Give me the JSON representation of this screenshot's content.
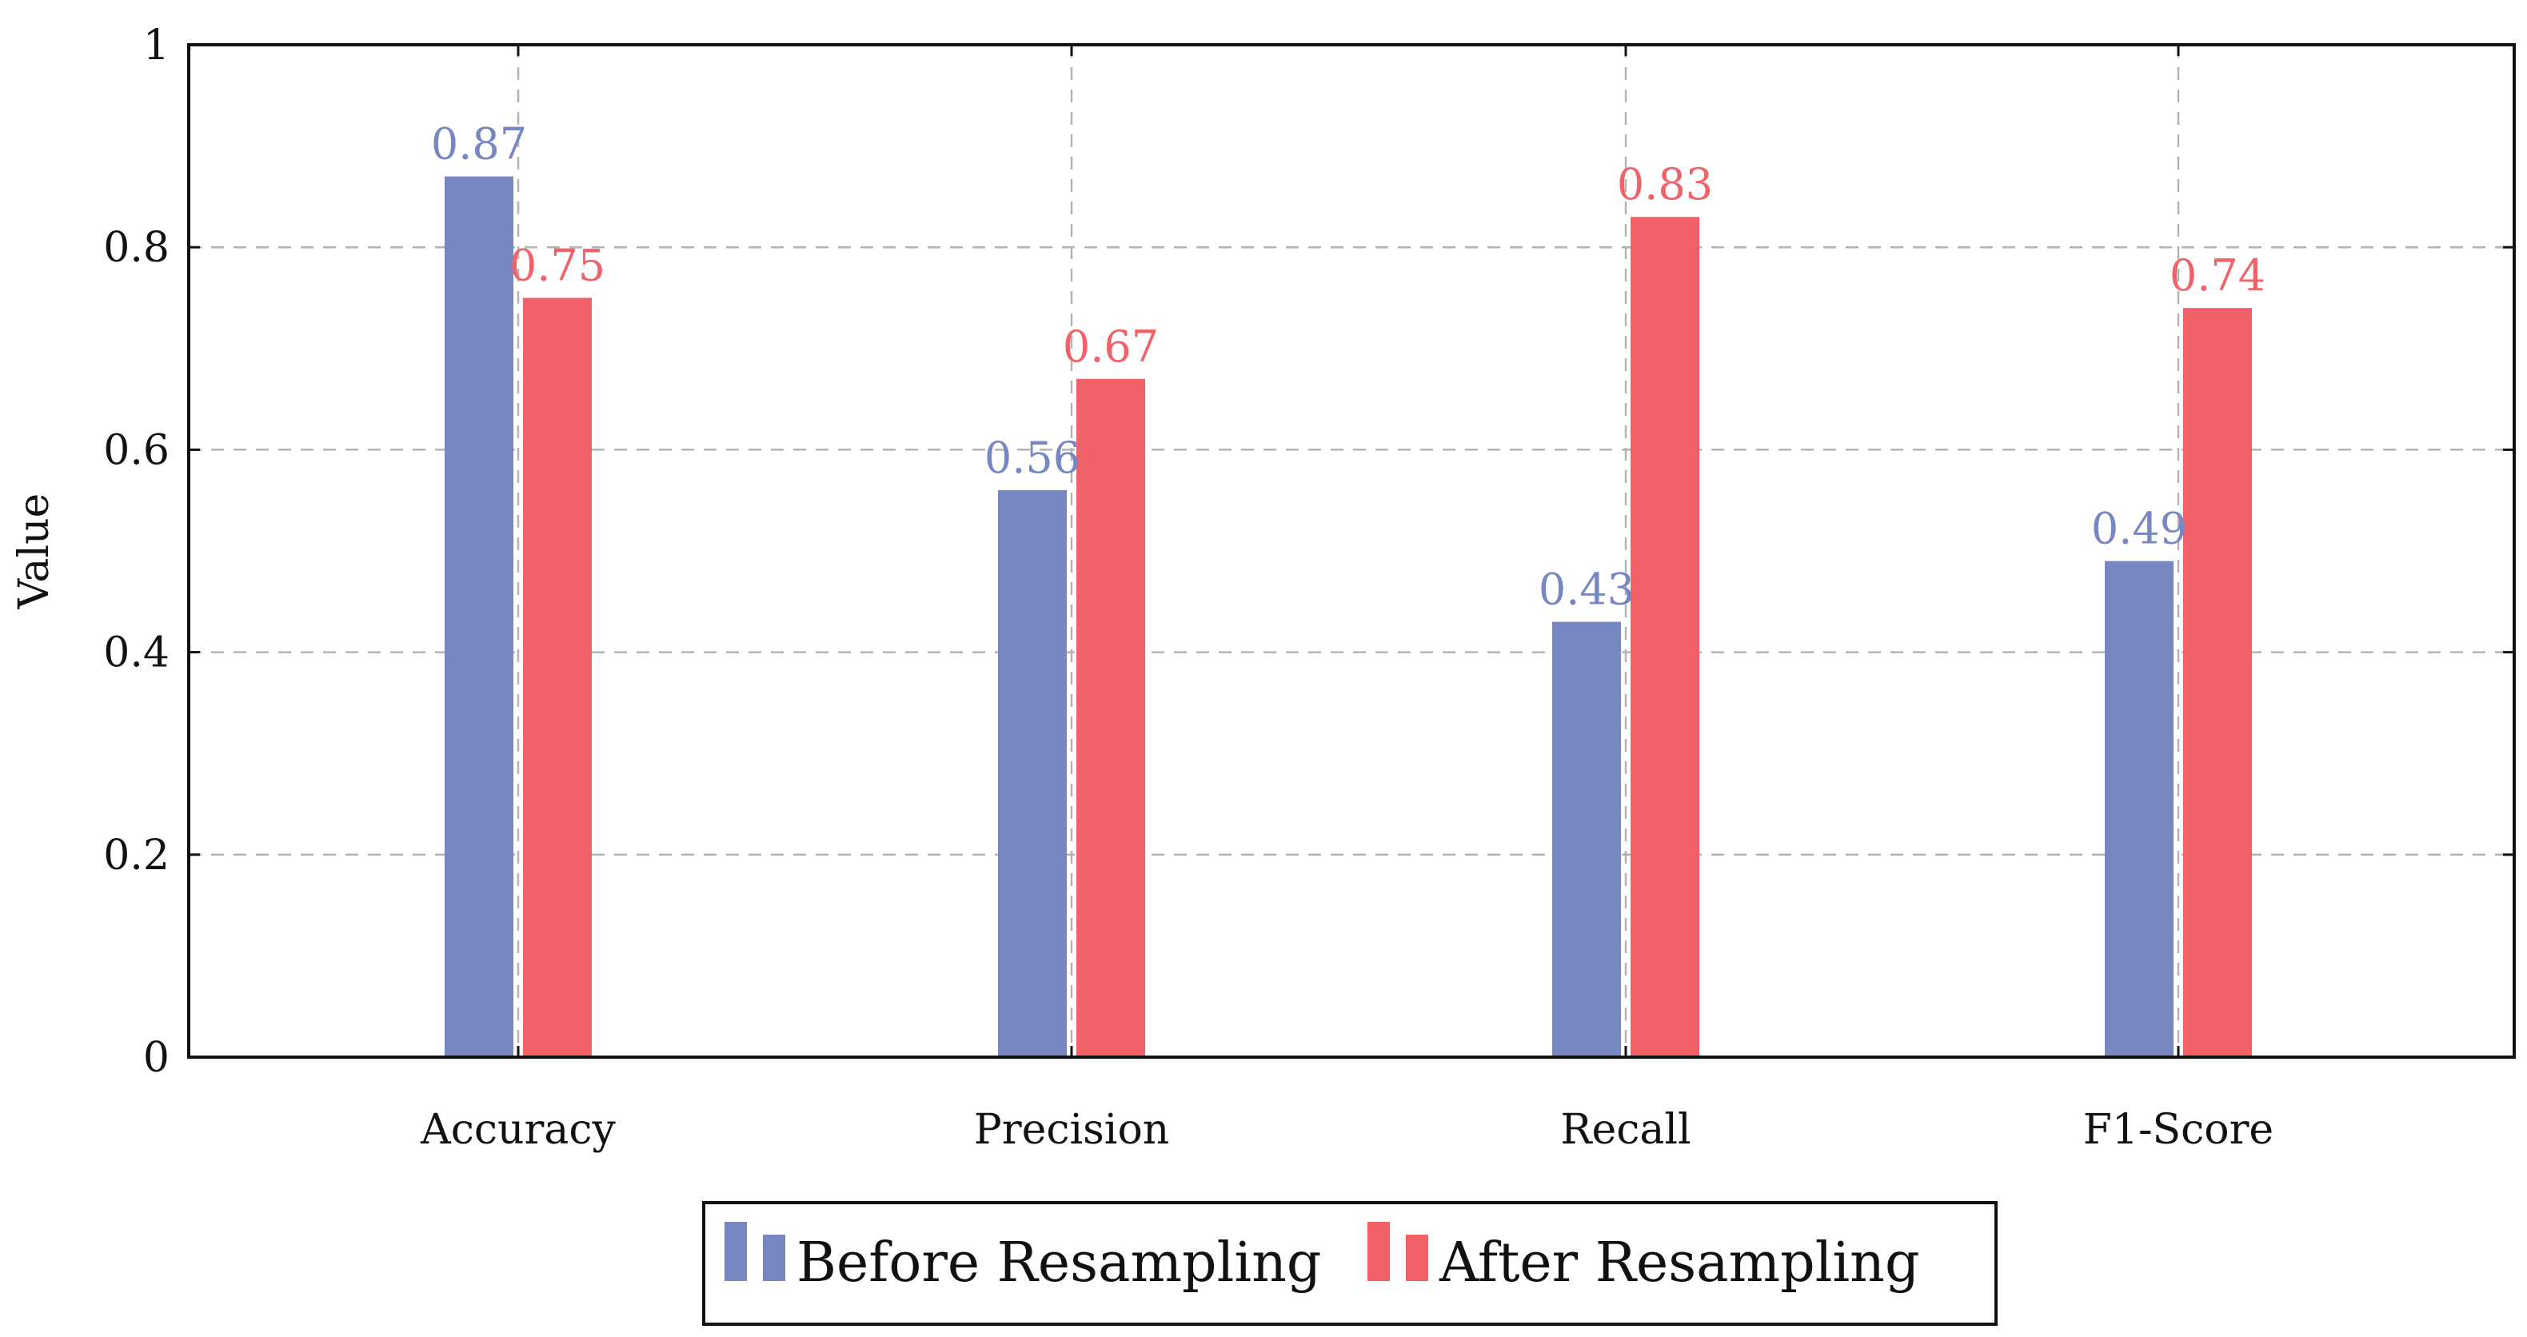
{
  "chart_data": {
    "type": "bar",
    "title": "",
    "xlabel": "",
    "ylabel": "Value",
    "ylim": [
      0,
      1
    ],
    "yticks": [
      0,
      0.2,
      0.4,
      0.6,
      0.8,
      1
    ],
    "ytick_labels": [
      "0",
      "0.2",
      "0.4",
      "0.6",
      "0.8",
      "1"
    ],
    "grid": true,
    "legend_position": "bottom-center",
    "categories": [
      "Accuracy",
      "Precision",
      "Recall",
      "F1-Score"
    ],
    "series": [
      {
        "name": "Before Resampling",
        "color": "#7687c1",
        "values": [
          0.87,
          0.56,
          0.43,
          0.49
        ],
        "labels": [
          "0.87",
          "0.56",
          "0.43",
          "0.49"
        ]
      },
      {
        "name": "After Resampling",
        "color": "#f06268",
        "values": [
          0.75,
          0.67,
          0.83,
          0.74
        ],
        "labels": [
          "0.75",
          "0.67",
          "0.83",
          "0.74"
        ]
      }
    ]
  }
}
